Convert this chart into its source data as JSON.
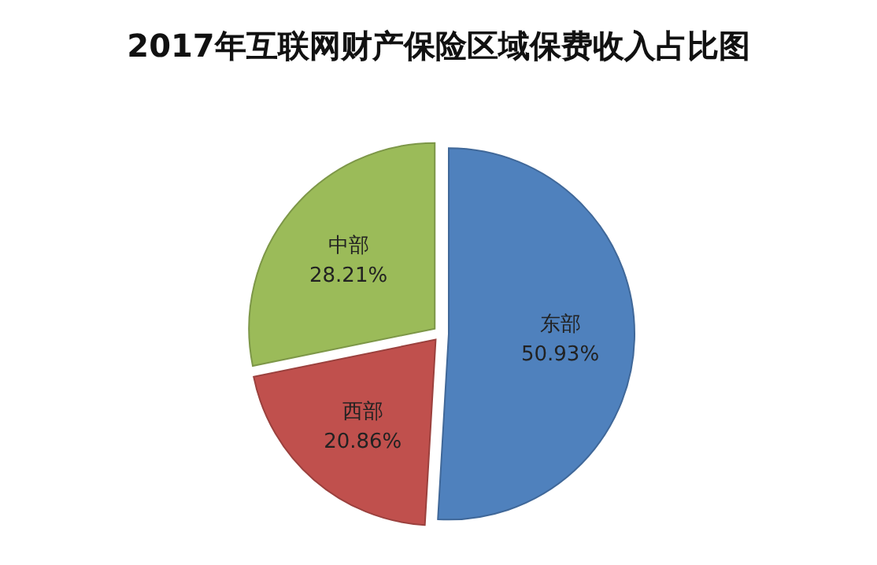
{
  "chart_data": {
    "type": "pie",
    "title": "2017年互联网财产保险区域保费收入占比图",
    "categories": [
      "东部",
      "西部",
      "中部"
    ],
    "values": [
      50.93,
      20.86,
      28.21
    ],
    "colors": [
      "#4f81bd",
      "#c0504d",
      "#9bbb59"
    ],
    "value_labels": [
      "50.93%",
      "20.86%",
      "28.21%"
    ],
    "legend": false
  }
}
